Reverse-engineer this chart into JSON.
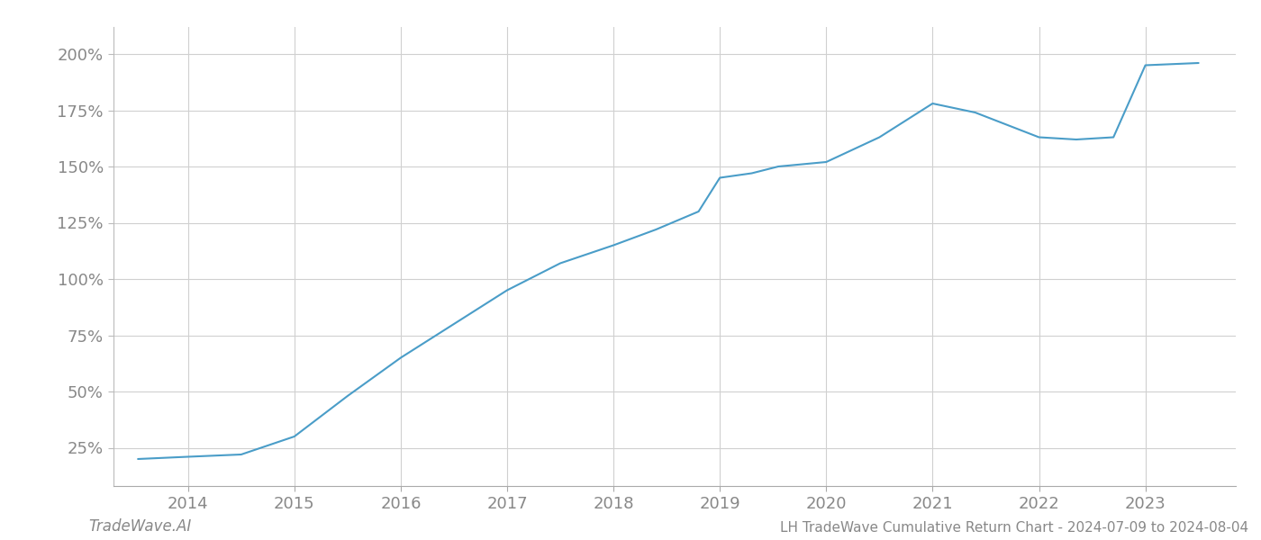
{
  "x": [
    2013.53,
    2014.0,
    2014.5,
    2015.0,
    2015.5,
    2016.0,
    2016.5,
    2017.0,
    2017.5,
    2018.0,
    2018.4,
    2018.8,
    2019.0,
    2019.3,
    2019.55,
    2020.0,
    2020.5,
    2021.0,
    2021.4,
    2022.0,
    2022.35,
    2022.7,
    2023.0,
    2023.5
  ],
  "y": [
    20,
    21,
    22,
    30,
    48,
    65,
    80,
    95,
    107,
    115,
    122,
    130,
    145,
    147,
    150,
    152,
    163,
    178,
    174,
    163,
    162,
    163,
    195,
    196
  ],
  "line_color": "#4a9dc8",
  "line_width": 1.5,
  "background_color": "#ffffff",
  "grid_color": "#d0d0d0",
  "title": "LH TradeWave Cumulative Return Chart - 2024-07-09 to 2024-08-04",
  "watermark": "TradeWave.AI",
  "yticks": [
    25,
    50,
    75,
    100,
    125,
    150,
    175,
    200
  ],
  "ytick_labels": [
    "25%",
    "50%",
    "75%",
    "100%",
    "125%",
    "150%",
    "175%",
    "200%"
  ],
  "xticks": [
    2014,
    2015,
    2016,
    2017,
    2018,
    2019,
    2020,
    2021,
    2022,
    2023
  ],
  "xlim": [
    2013.3,
    2023.85
  ],
  "ylim": [
    8,
    212
  ],
  "tick_color": "#888888",
  "tick_fontsize": 13,
  "title_fontsize": 11,
  "watermark_fontsize": 12,
  "left_spine_color": "#bbbbbb"
}
